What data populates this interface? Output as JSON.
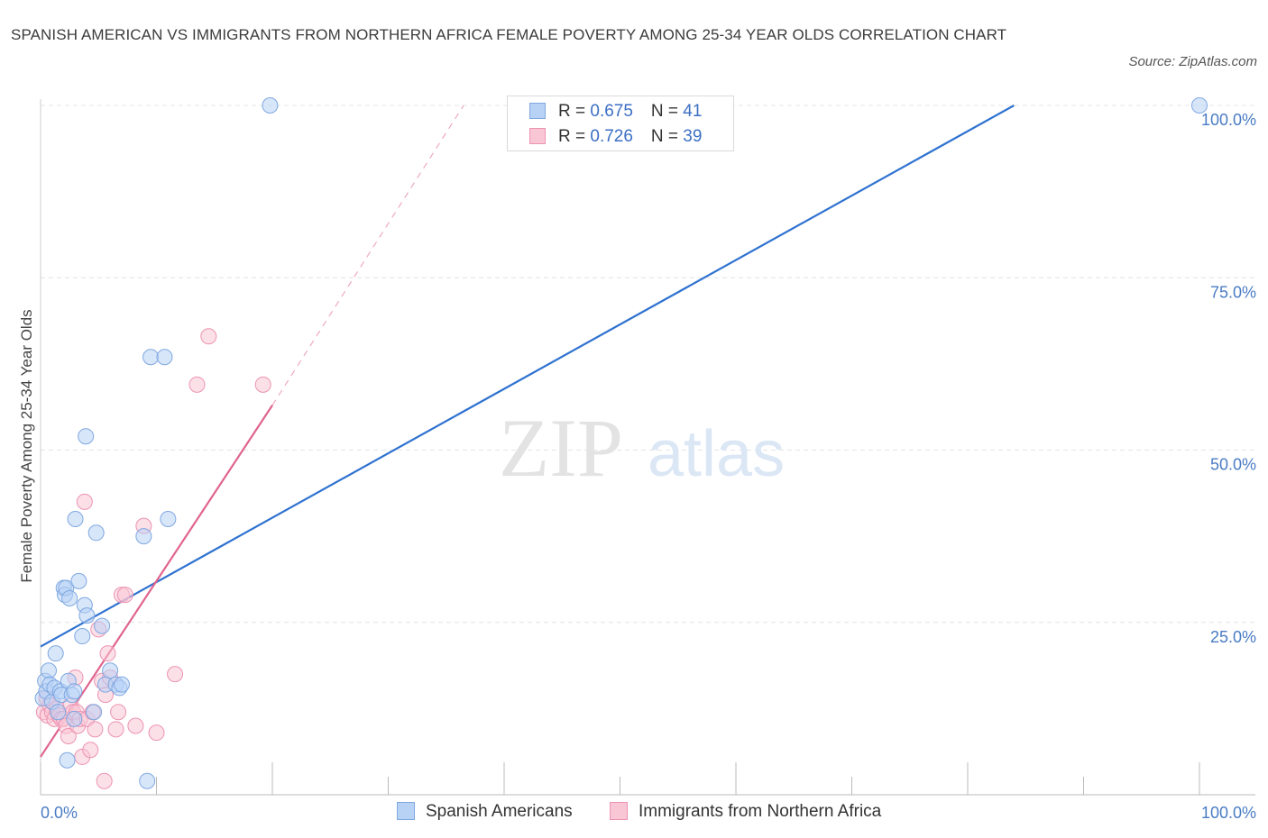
{
  "title": "SPANISH AMERICAN VS IMMIGRANTS FROM NORTHERN AFRICA FEMALE POVERTY AMONG 25-34 YEAR OLDS CORRELATION CHART",
  "source": "Source: ZipAtlas.com",
  "watermark": {
    "zip": "ZIP",
    "atlas": "atlas"
  },
  "legend": {
    "series1": {
      "r_label": "R = ",
      "r_value": "0.675",
      "n_label": "N = ",
      "n_value": "41"
    },
    "series2": {
      "r_label": "R = ",
      "r_value": "0.726",
      "n_label": "N = ",
      "n_value": "39"
    }
  },
  "colors": {
    "blue_fill": "#b8d2f5",
    "blue_stroke": "#7fa8e0",
    "blue_line": "#2f72d0",
    "pink_fill": "#f9c6d6",
    "pink_stroke": "#ec93b2",
    "pink_line": "#e0648e",
    "grid": "#e4e4e4",
    "tick_text": "#4a7cc4"
  },
  "chart_data": {
    "type": "scatter",
    "title": "SPANISH AMERICAN VS IMMIGRANTS FROM NORTHERN AFRICA FEMALE POVERTY AMONG 25-34 YEAR OLDS CORRELATION CHART",
    "xlabel": "",
    "ylabel": "Female Poverty Among 25-34 Year Olds",
    "xlim": [
      0,
      100
    ],
    "ylim": [
      0,
      100
    ],
    "x_tick_labels": [
      "0.0%",
      "100.0%"
    ],
    "y_ticks": [
      {
        "value": 25,
        "label": "25.0%"
      },
      {
        "value": 50,
        "label": "50.0%"
      },
      {
        "value": 75,
        "label": "75.0%"
      },
      {
        "value": 100,
        "label": "100.0%"
      }
    ],
    "grid": true,
    "legend_position": "top-center",
    "series": [
      {
        "name": "Spanish Americans",
        "color": "#7fa8e0",
        "trend": {
          "x": [
            0,
            84
          ],
          "y": [
            21.5,
            100
          ]
        },
        "points": [
          [
            0.2,
            14
          ],
          [
            0.4,
            16.5
          ],
          [
            0.5,
            15
          ],
          [
            0.7,
            18
          ],
          [
            0.8,
            16
          ],
          [
            1.0,
            13.5
          ],
          [
            1.2,
            15.5
          ],
          [
            1.3,
            20.5
          ],
          [
            1.5,
            12
          ],
          [
            1.7,
            15
          ],
          [
            1.8,
            14.5
          ],
          [
            2.0,
            30
          ],
          [
            2.1,
            29
          ],
          [
            2.2,
            30
          ],
          [
            2.3,
            5
          ],
          [
            2.4,
            16.5
          ],
          [
            2.5,
            28.5
          ],
          [
            2.7,
            14.5
          ],
          [
            2.9,
            15
          ],
          [
            2.9,
            11
          ],
          [
            3.0,
            40
          ],
          [
            3.3,
            31
          ],
          [
            3.6,
            23
          ],
          [
            3.8,
            27.5
          ],
          [
            3.9,
            52
          ],
          [
            4.0,
            26
          ],
          [
            4.6,
            12
          ],
          [
            4.8,
            38
          ],
          [
            5.3,
            24.5
          ],
          [
            5.6,
            16
          ],
          [
            6.0,
            18
          ],
          [
            6.5,
            16
          ],
          [
            6.8,
            15.5
          ],
          [
            7.0,
            16
          ],
          [
            8.9,
            37.5
          ],
          [
            9.2,
            2
          ],
          [
            9.5,
            63.5
          ],
          [
            10.7,
            63.5
          ],
          [
            11.0,
            40
          ],
          [
            19.8,
            100
          ],
          [
            100.0,
            100
          ]
        ]
      },
      {
        "name": "Immigrants from Northern Africa",
        "color": "#ec93b2",
        "trend": {
          "x": [
            0,
            20
          ],
          "y": [
            5.5,
            56.5
          ],
          "extension": {
            "x": [
              20,
              36.5
            ],
            "y": [
              56.5,
              100
            ]
          }
        },
        "points": [
          [
            0.3,
            12
          ],
          [
            0.5,
            14
          ],
          [
            0.6,
            11.5
          ],
          [
            0.8,
            13
          ],
          [
            1.0,
            12
          ],
          [
            1.2,
            11
          ],
          [
            1.4,
            12.5
          ],
          [
            1.6,
            11.5
          ],
          [
            1.8,
            11
          ],
          [
            2.0,
            11
          ],
          [
            2.2,
            10
          ],
          [
            2.4,
            8.5
          ],
          [
            2.6,
            13
          ],
          [
            2.8,
            12
          ],
          [
            3.0,
            17
          ],
          [
            3.1,
            12
          ],
          [
            3.2,
            10
          ],
          [
            3.4,
            11
          ],
          [
            3.6,
            5.5
          ],
          [
            3.8,
            42.5
          ],
          [
            4.0,
            11
          ],
          [
            4.3,
            6.5
          ],
          [
            4.5,
            12
          ],
          [
            4.7,
            9.5
          ],
          [
            5.0,
            24
          ],
          [
            5.3,
            16.5
          ],
          [
            5.5,
            2
          ],
          [
            5.6,
            14.5
          ],
          [
            5.8,
            20.5
          ],
          [
            6.0,
            17
          ],
          [
            6.5,
            9.5
          ],
          [
            6.7,
            12
          ],
          [
            7.0,
            29
          ],
          [
            7.3,
            29
          ],
          [
            8.2,
            10
          ],
          [
            8.9,
            39
          ],
          [
            10.0,
            9
          ],
          [
            11.6,
            17.5
          ],
          [
            13.5,
            59.5
          ]
        ],
        "extra_points": [
          [
            14.5,
            66.5
          ],
          [
            19.2,
            59.5
          ]
        ]
      }
    ]
  },
  "bottom_legend": {
    "series1_label": "Spanish Americans",
    "series2_label": "Immigrants from Northern Africa"
  }
}
